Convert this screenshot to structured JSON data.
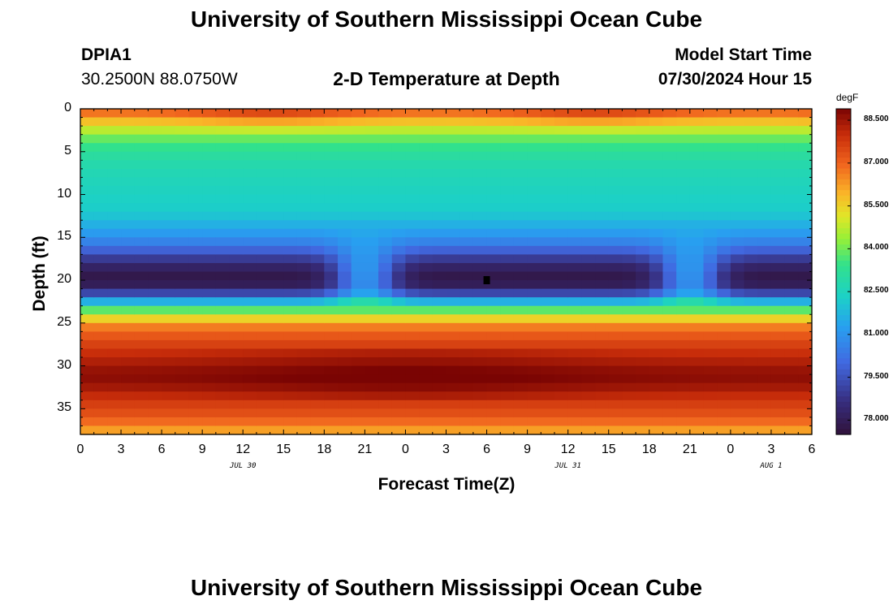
{
  "page": {
    "title": "University of Southern Mississippi Ocean Cube",
    "footer_title": "University of Southern Mississippi Ocean Cube",
    "station_id": "DPIA1",
    "coords": "30.2500N  88.0750W",
    "model_start_label": "Model Start Time",
    "model_start_value": "07/30/2024 Hour 15"
  },
  "chart_data": {
    "type": "heatmap",
    "title": "2-D Temperature at Depth",
    "xlabel": "Forecast Time(Z)",
    "ylabel": "Depth (ft)",
    "x_tick_labels": [
      "0",
      "3",
      "6",
      "9",
      "12",
      "15",
      "18",
      "21",
      "0",
      "3",
      "6",
      "9",
      "12",
      "15",
      "18",
      "21",
      "0",
      "3",
      "6"
    ],
    "x_hours": [
      0,
      54
    ],
    "date_labels": [
      {
        "label": "JUL 30",
        "hour": 12
      },
      {
        "label": "JUL 31",
        "hour": 36
      },
      {
        "label": "AUG 1",
        "hour": 51
      }
    ],
    "y_ticks": [
      0,
      5,
      10,
      15,
      20,
      25,
      30,
      35
    ],
    "ylim": [
      0,
      38
    ],
    "y_inverted": true,
    "colorbar": {
      "unit": "degF",
      "min": 77.5,
      "max": 88.9,
      "ticks": [
        "88.500",
        "87.000",
        "85.500",
        "84.000",
        "82.500",
        "81.000",
        "79.500",
        "78.000"
      ],
      "tick_values": [
        88.5,
        87.0,
        85.5,
        84.0,
        82.5,
        81.0,
        79.5,
        78.0
      ]
    },
    "marker": {
      "hour": 30,
      "depth_ft": 20,
      "color": "#000000"
    },
    "depth_profile_degF": [
      [
        0,
        87.2
      ],
      [
        1,
        86.2
      ],
      [
        2,
        85.2
      ],
      [
        3,
        84.2
      ],
      [
        4,
        83.6
      ],
      [
        5,
        83.2
      ],
      [
        6,
        82.9
      ],
      [
        8,
        82.6
      ],
      [
        10,
        82.4
      ],
      [
        12,
        82.2
      ],
      [
        13,
        81.8
      ],
      [
        14,
        81.4
      ],
      [
        15,
        80.9
      ],
      [
        16,
        80.3
      ],
      [
        17,
        79.4
      ],
      [
        18,
        78.5
      ],
      [
        19,
        77.9
      ],
      [
        20,
        77.7
      ],
      [
        21,
        78.3
      ],
      [
        22,
        80.2
      ],
      [
        23,
        83.0
      ],
      [
        24,
        84.6
      ],
      [
        25,
        86.3
      ],
      [
        26,
        87.0
      ],
      [
        28,
        87.8
      ],
      [
        30,
        88.4
      ],
      [
        31,
        88.7
      ],
      [
        32,
        88.6
      ],
      [
        33,
        88.2
      ],
      [
        34,
        87.8
      ],
      [
        35,
        87.5
      ],
      [
        36,
        87.2
      ],
      [
        37,
        86.6
      ],
      [
        38,
        85.8
      ]
    ],
    "mixing_events_hour": [
      21,
      45
    ]
  }
}
